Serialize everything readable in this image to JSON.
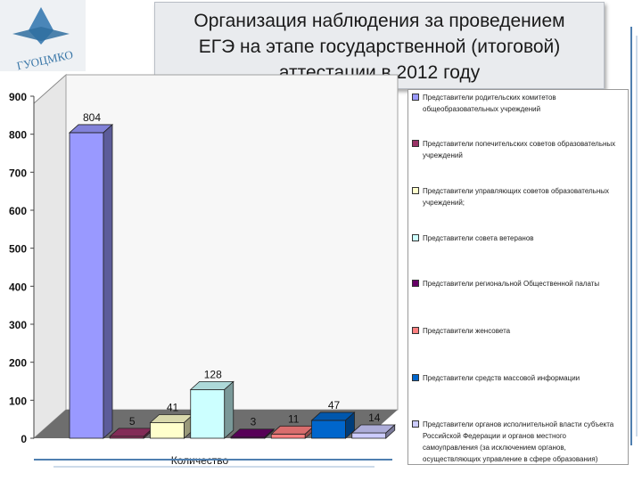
{
  "header": {
    "title_lines": [
      "Организация наблюдения за проведением",
      "ЕГЭ на этапе государственной (итоговой)",
      "аттестации в 2012 году"
    ],
    "logo_text": "ГУОЦМКО"
  },
  "chart_data": {
    "type": "bar",
    "style": "3d-clustered-column",
    "xlabel": "Количество",
    "ylabel": "",
    "ylim": [
      0,
      900
    ],
    "yticks": [
      0,
      100,
      200,
      300,
      400,
      500,
      600,
      700,
      800,
      900
    ],
    "grid": false,
    "legend_position": "right",
    "series": [
      {
        "name": "Представители родительских комитетов общеобразовательных учреждений",
        "value": 804,
        "color": "#9999ff"
      },
      {
        "name": "Представители попечительских советов образовательных учреждений",
        "value": 5,
        "color": "#993366"
      },
      {
        "name": "Представители управляющих советов образовательных учреждений;",
        "value": 41,
        "color": "#ffffcc"
      },
      {
        "name": "Представители совета ветеранов",
        "value": 128,
        "color": "#ccffff"
      },
      {
        "name": "Представители региональной Общественной палаты",
        "value": 3,
        "color": "#660066"
      },
      {
        "name": "Представители женсовета",
        "value": 11,
        "color": "#ff8080"
      },
      {
        "name": "Представители средств массовой информации",
        "value": 47,
        "color": "#0066cc"
      },
      {
        "name": "Представители органов исполнительной власти субъекта Российской Федерации и органов местного самоуправления (за исключением органов, осуществляющих управление в сфере образования)",
        "value": 14,
        "color": "#ccccff"
      }
    ]
  },
  "legend": {
    "items": [
      {
        "lines": [
          "Представители родительских комитетов",
          "общеобразовательных учреждений"
        ]
      },
      {
        "lines": [
          "Представители попечительских советов образовательных",
          "учреждений"
        ]
      },
      {
        "lines": [
          "Представители управляющих советов образовательных",
          "учреждений;"
        ]
      },
      {
        "lines": [
          "Представители совета ветеранов"
        ]
      },
      {
        "lines": [
          "Представители региональной Общественной палаты"
        ]
      },
      {
        "lines": [
          "Представители женсовета"
        ]
      },
      {
        "lines": [
          "Представители средств массовой информации"
        ]
      },
      {
        "lines": [
          "Представители органов исполнительной власти субъекта",
          "Российской Федерации и органов местного",
          "самоуправления (за исключением органов,",
          "осуществляющих управление в сфере образования)"
        ]
      }
    ]
  }
}
